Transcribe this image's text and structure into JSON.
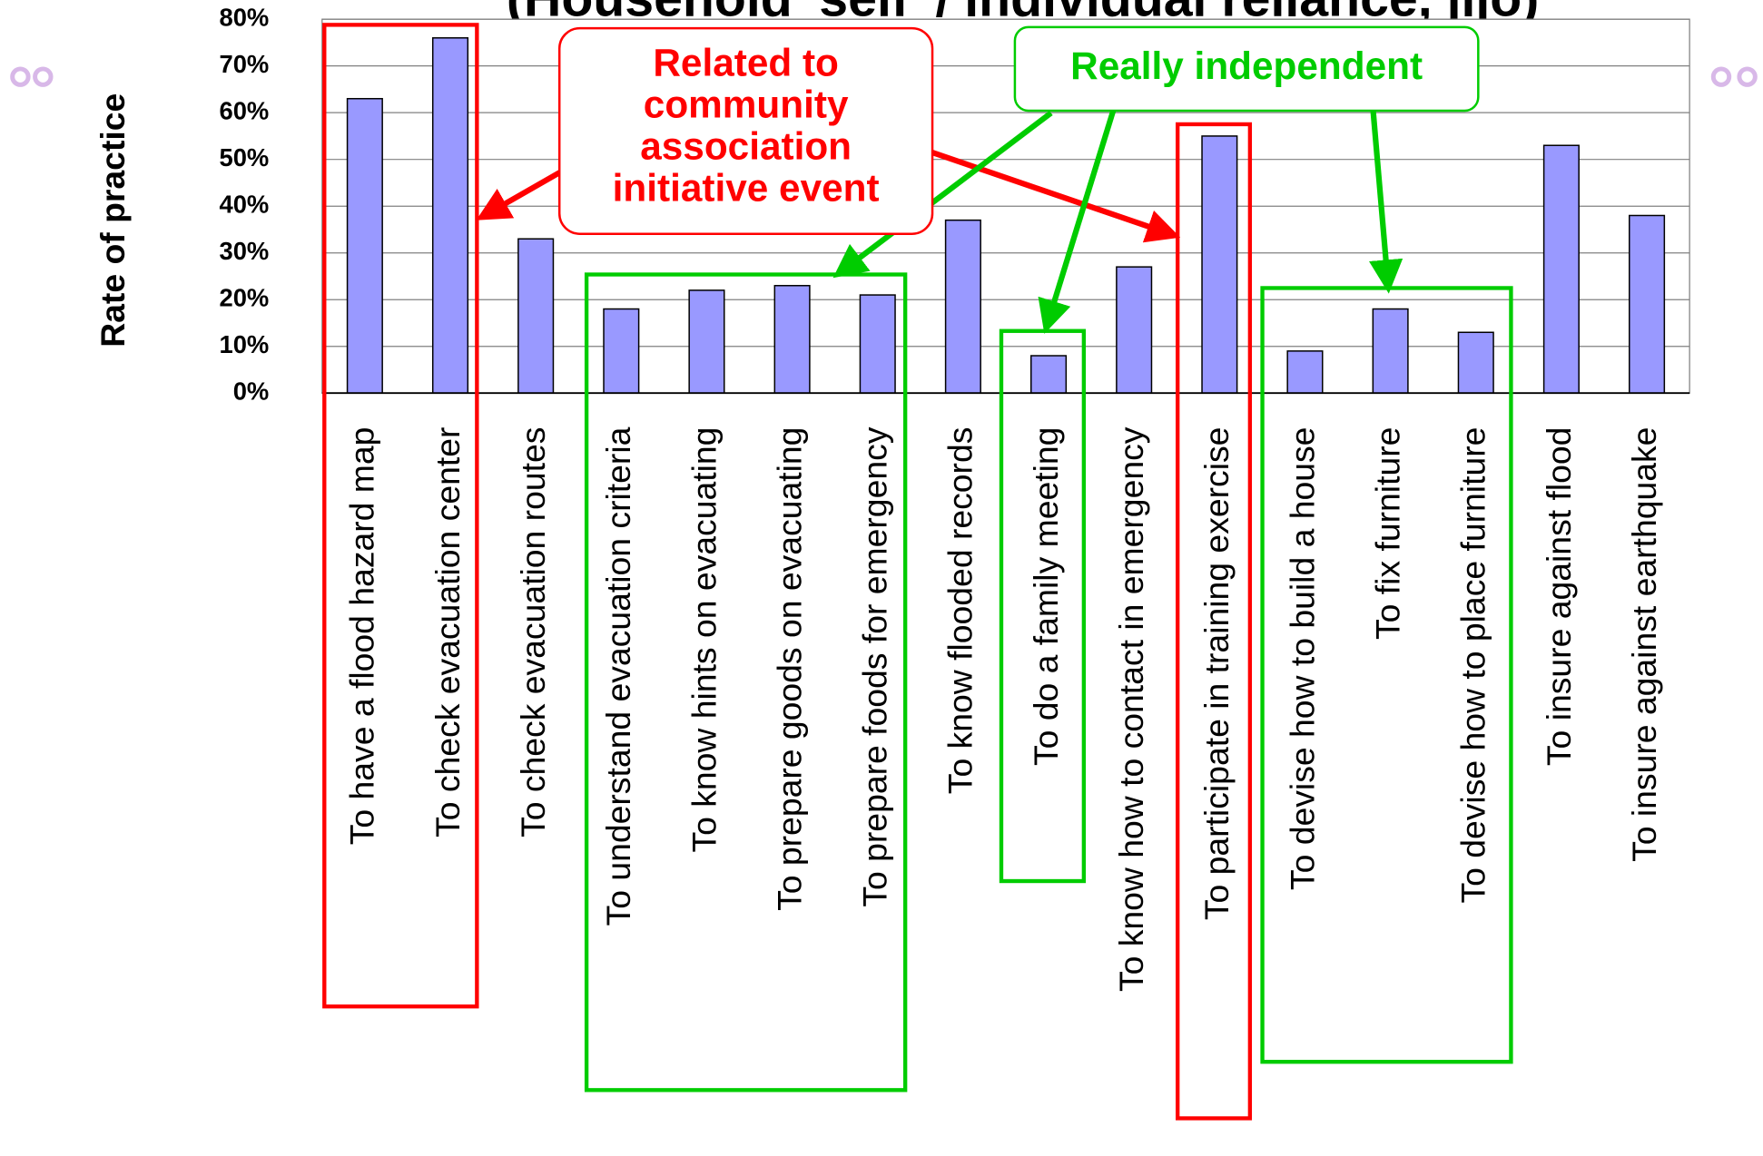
{
  "chart_data": {
    "type": "bar",
    "title": "(Household 'self' / individual reliance, jijo)",
    "y_label": "Rate of practice",
    "categories": [
      "To have a flood hazard map",
      "To check evacuation center",
      "To check evacuation routes",
      "To understand evacuation criteria",
      "To know hints on evacuating",
      "To prepare goods on evacuating",
      "To prepare foods for emergency",
      "To know flooded records",
      "To do a family meeting",
      "To know how to contact in emergency",
      "To participate in training exercise",
      "To devise how to build a house",
      "To fix furniture",
      "To devise how to place furniture",
      "To insure against flood",
      "To insure against earthquake"
    ],
    "values": [
      63,
      76,
      33,
      18,
      22,
      23,
      21,
      37,
      8,
      27,
      55,
      9,
      18,
      13,
      53,
      38
    ],
    "color": "#9999ff",
    "ylim": [
      0,
      80
    ],
    "yticks": [
      {
        "value": 0,
        "label": "0%"
      },
      {
        "value": 10,
        "label": "10%"
      },
      {
        "value": 20,
        "label": "20%"
      },
      {
        "value": 30,
        "label": "30%"
      },
      {
        "value": 40,
        "label": "40%"
      },
      {
        "value": 50,
        "label": "50%"
      },
      {
        "value": 60,
        "label": "60%"
      },
      {
        "value": 70,
        "label": "70%"
      },
      {
        "value": 80,
        "label": "80%"
      }
    ],
    "grid": true,
    "annotations": [
      {
        "lines": [
          "Related to",
          "community",
          "association",
          "initiative event"
        ],
        "color": "#ff0000"
      },
      {
        "lines": [
          "Really independent"
        ],
        "color": "#00cc00"
      }
    ]
  }
}
